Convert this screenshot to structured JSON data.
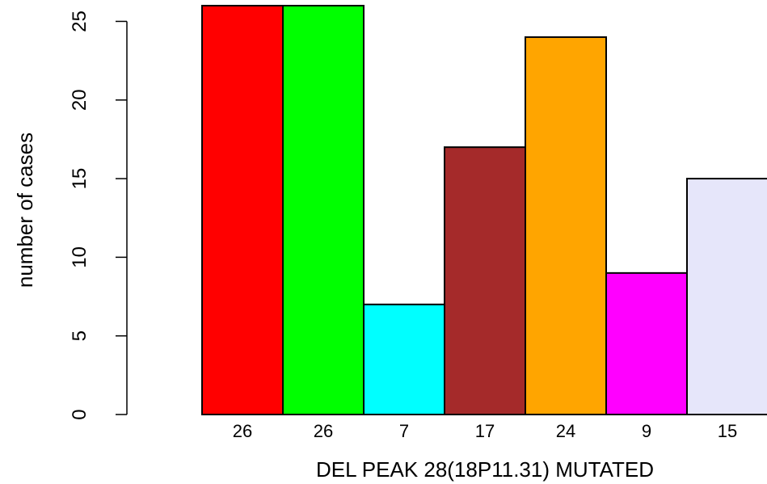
{
  "chart_data": {
    "type": "bar",
    "xlabel": "DEL PEAK 28(18P11.31) MUTATED",
    "ylabel": "number of cases",
    "ylim": [
      0,
      26
    ],
    "yticks": [
      0,
      5,
      10,
      15,
      20,
      25
    ],
    "grid": false,
    "legend": "none",
    "values": [
      26,
      26,
      7,
      17,
      24,
      9,
      15
    ],
    "bar_labels": [
      "26",
      "26",
      "7",
      "17",
      "24",
      "9",
      "15"
    ],
    "colors": [
      "#ff0000",
      "#00ff00",
      "#00ffff",
      "#a52a2a",
      "#ffa500",
      "#ff00ff",
      "#e6e6fa"
    ]
  }
}
